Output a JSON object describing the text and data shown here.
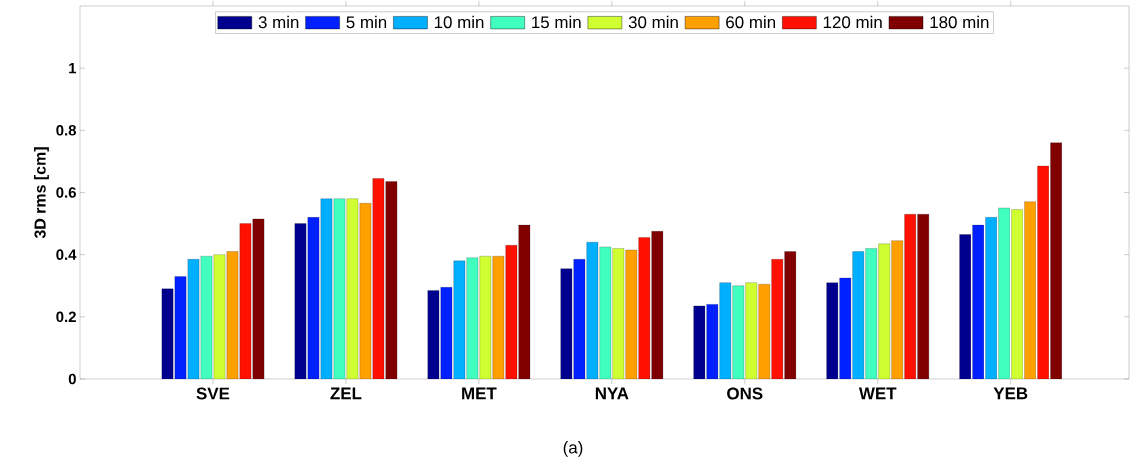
{
  "chart_data": {
    "type": "bar",
    "categories": [
      "SVE",
      "ZEL",
      "MET",
      "NYA",
      "ONS",
      "WET",
      "YEB"
    ],
    "ylabel": "3D rms [cm]",
    "ylim": [
      0,
      1.2
    ],
    "yticks": [
      0,
      0.2,
      0.4,
      0.6,
      0.8,
      1
    ],
    "grid": false,
    "legend": "top",
    "annotations": [
      "(a)"
    ],
    "series": [
      {
        "name": "3 min",
        "color": "#00008f",
        "values": [
          0.29,
          0.5,
          0.285,
          0.355,
          0.235,
          0.31,
          0.465
        ]
      },
      {
        "name": "5 min",
        "color": "#0020ff",
        "values": [
          0.33,
          0.52,
          0.295,
          0.385,
          0.24,
          0.325,
          0.495
        ]
      },
      {
        "name": "10 min",
        "color": "#00afff",
        "values": [
          0.385,
          0.58,
          0.38,
          0.44,
          0.31,
          0.41,
          0.52
        ]
      },
      {
        "name": "15 min",
        "color": "#40ffbf",
        "values": [
          0.395,
          0.58,
          0.39,
          0.425,
          0.3,
          0.42,
          0.55
        ]
      },
      {
        "name": "30 min",
        "color": "#cfff30",
        "values": [
          0.4,
          0.58,
          0.395,
          0.42,
          0.31,
          0.435,
          0.545
        ]
      },
      {
        "name": "60 min",
        "color": "#ff9f00",
        "values": [
          0.41,
          0.565,
          0.395,
          0.415,
          0.305,
          0.445,
          0.57
        ]
      },
      {
        "name": "120 min",
        "color": "#ff1000",
        "values": [
          0.5,
          0.645,
          0.43,
          0.455,
          0.385,
          0.53,
          0.685
        ]
      },
      {
        "name": "180 min",
        "color": "#800000",
        "values": [
          0.515,
          0.635,
          0.495,
          0.475,
          0.41,
          0.53,
          0.76
        ]
      }
    ]
  }
}
